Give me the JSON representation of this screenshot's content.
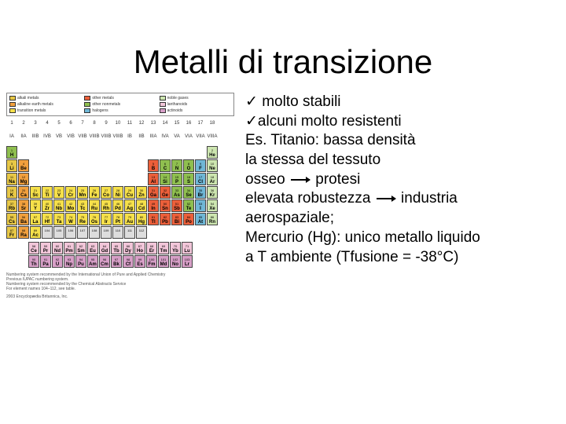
{
  "title": "Metalli di transizione",
  "bullets": {
    "b1": " molto stabili",
    "b2": "alcuni molto resistenti",
    "l3": "Es. Titanio: bassa densità",
    "l4": " la stessa del tessuto",
    "l5a": "osseo ",
    "l5b": " protesi",
    "l6a": "elevata robustezza  ",
    "l6b": " industria",
    "l7": "aerospaziale;",
    "l8": "Mercurio (Hg): unico metallo liquido",
    "l9": "a T ambiente  (Tfusione = -38°C)"
  },
  "legend": [
    {
      "color": "#e8c846",
      "label": "alkali metals"
    },
    {
      "color": "#ec5f3a",
      "label": "other metals"
    },
    {
      "color": "#cde6b0",
      "label": "noble gases"
    },
    {
      "color": "#f2a03d",
      "label": "alkaline earth metals"
    },
    {
      "color": "#8fbf4f",
      "label": "other nonmetals"
    },
    {
      "color": "#f2c6d9",
      "label": "lanthanoids"
    },
    {
      "color": "#f6e04a",
      "label": "transition metals"
    },
    {
      "color": "#6fb7d6",
      "label": "halogens"
    },
    {
      "color": "#d79fc7",
      "label": "actinoids"
    }
  ],
  "colors": {
    "alkali": "#e8c846",
    "alkearth": "#f2a03d",
    "transition": "#f6e04a",
    "othermetal": "#ec5f3a",
    "nonmetal": "#8fbf4f",
    "halogen": "#6fb7d6",
    "noble": "#cde6b0",
    "lanth": "#f2c6d9",
    "act": "#d79fc7",
    "unknown": "#dddddd"
  },
  "groups": [
    "1",
    "2",
    "3",
    "4",
    "5",
    "6",
    "7",
    "8",
    "9",
    "10",
    "11",
    "12",
    "13",
    "14",
    "15",
    "16",
    "17",
    "18"
  ],
  "romans": [
    "IA",
    "IIA",
    "IIIB",
    "IVB",
    "VB",
    "VIB",
    "VIIB",
    "VIIIB",
    "VIIIB",
    "VIIIB",
    "IB",
    "IIB",
    "IIIA",
    "IVA",
    "VA",
    "VIA",
    "VIIA",
    "VIIIA"
  ],
  "rows": [
    [
      {
        "n": "1",
        "s": "H",
        "c": "nonmetal"
      },
      null,
      null,
      null,
      null,
      null,
      null,
      null,
      null,
      null,
      null,
      null,
      null,
      null,
      null,
      null,
      null,
      {
        "n": "2",
        "s": "He",
        "c": "noble"
      }
    ],
    [
      {
        "n": "3",
        "s": "Li",
        "c": "alkali"
      },
      {
        "n": "4",
        "s": "Be",
        "c": "alkearth"
      },
      null,
      null,
      null,
      null,
      null,
      null,
      null,
      null,
      null,
      null,
      {
        "n": "5",
        "s": "B",
        "c": "othermetal"
      },
      {
        "n": "6",
        "s": "C",
        "c": "nonmetal"
      },
      {
        "n": "7",
        "s": "N",
        "c": "nonmetal"
      },
      {
        "n": "8",
        "s": "O",
        "c": "nonmetal"
      },
      {
        "n": "9",
        "s": "F",
        "c": "halogen"
      },
      {
        "n": "10",
        "s": "Ne",
        "c": "noble"
      }
    ],
    [
      {
        "n": "11",
        "s": "Na",
        "c": "alkali"
      },
      {
        "n": "12",
        "s": "Mg",
        "c": "alkearth"
      },
      null,
      null,
      null,
      null,
      null,
      null,
      null,
      null,
      null,
      null,
      {
        "n": "13",
        "s": "Al",
        "c": "othermetal"
      },
      {
        "n": "14",
        "s": "Si",
        "c": "nonmetal"
      },
      {
        "n": "15",
        "s": "P",
        "c": "nonmetal"
      },
      {
        "n": "16",
        "s": "S",
        "c": "nonmetal"
      },
      {
        "n": "17",
        "s": "Cl",
        "c": "halogen"
      },
      {
        "n": "18",
        "s": "Ar",
        "c": "noble"
      }
    ],
    [
      {
        "n": "19",
        "s": "K",
        "c": "alkali"
      },
      {
        "n": "20",
        "s": "Ca",
        "c": "alkearth"
      },
      {
        "n": "21",
        "s": "Sc",
        "c": "transition"
      },
      {
        "n": "22",
        "s": "Ti",
        "c": "transition"
      },
      {
        "n": "23",
        "s": "V",
        "c": "transition"
      },
      {
        "n": "24",
        "s": "Cr",
        "c": "transition"
      },
      {
        "n": "25",
        "s": "Mn",
        "c": "transition"
      },
      {
        "n": "26",
        "s": "Fe",
        "c": "transition"
      },
      {
        "n": "27",
        "s": "Co",
        "c": "transition"
      },
      {
        "n": "28",
        "s": "Ni",
        "c": "transition"
      },
      {
        "n": "29",
        "s": "Cu",
        "c": "transition"
      },
      {
        "n": "30",
        "s": "Zn",
        "c": "transition"
      },
      {
        "n": "31",
        "s": "Ga",
        "c": "othermetal"
      },
      {
        "n": "32",
        "s": "Ge",
        "c": "othermetal"
      },
      {
        "n": "33",
        "s": "As",
        "c": "nonmetal"
      },
      {
        "n": "34",
        "s": "Se",
        "c": "nonmetal"
      },
      {
        "n": "35",
        "s": "Br",
        "c": "halogen"
      },
      {
        "n": "36",
        "s": "Kr",
        "c": "noble"
      }
    ],
    [
      {
        "n": "37",
        "s": "Rb",
        "c": "alkali"
      },
      {
        "n": "38",
        "s": "Sr",
        "c": "alkearth"
      },
      {
        "n": "39",
        "s": "Y",
        "c": "transition"
      },
      {
        "n": "40",
        "s": "Zr",
        "c": "transition"
      },
      {
        "n": "41",
        "s": "Nb",
        "c": "transition"
      },
      {
        "n": "42",
        "s": "Mo",
        "c": "transition"
      },
      {
        "n": "43",
        "s": "Tc",
        "c": "transition"
      },
      {
        "n": "44",
        "s": "Ru",
        "c": "transition"
      },
      {
        "n": "45",
        "s": "Rh",
        "c": "transition"
      },
      {
        "n": "46",
        "s": "Pd",
        "c": "transition"
      },
      {
        "n": "47",
        "s": "Ag",
        "c": "transition"
      },
      {
        "n": "48",
        "s": "Cd",
        "c": "transition"
      },
      {
        "n": "49",
        "s": "In",
        "c": "othermetal"
      },
      {
        "n": "50",
        "s": "Sn",
        "c": "othermetal"
      },
      {
        "n": "51",
        "s": "Sb",
        "c": "othermetal"
      },
      {
        "n": "52",
        "s": "Te",
        "c": "nonmetal"
      },
      {
        "n": "53",
        "s": "I",
        "c": "halogen"
      },
      {
        "n": "54",
        "s": "Xe",
        "c": "noble"
      }
    ],
    [
      {
        "n": "55",
        "s": "Cs",
        "c": "alkali"
      },
      {
        "n": "56",
        "s": "Ba",
        "c": "alkearth"
      },
      {
        "n": "57",
        "s": "La",
        "c": "transition"
      },
      {
        "n": "72",
        "s": "Hf",
        "c": "transition"
      },
      {
        "n": "73",
        "s": "Ta",
        "c": "transition"
      },
      {
        "n": "74",
        "s": "W",
        "c": "transition"
      },
      {
        "n": "75",
        "s": "Re",
        "c": "transition"
      },
      {
        "n": "76",
        "s": "Os",
        "c": "transition"
      },
      {
        "n": "77",
        "s": "Ir",
        "c": "transition"
      },
      {
        "n": "78",
        "s": "Pt",
        "c": "transition"
      },
      {
        "n": "79",
        "s": "Au",
        "c": "transition"
      },
      {
        "n": "80",
        "s": "Hg",
        "c": "transition"
      },
      {
        "n": "81",
        "s": "Tl",
        "c": "othermetal"
      },
      {
        "n": "82",
        "s": "Pb",
        "c": "othermetal"
      },
      {
        "n": "83",
        "s": "Bi",
        "c": "othermetal"
      },
      {
        "n": "84",
        "s": "Po",
        "c": "othermetal"
      },
      {
        "n": "85",
        "s": "At",
        "c": "halogen"
      },
      {
        "n": "86",
        "s": "Rn",
        "c": "noble"
      }
    ],
    [
      {
        "n": "87",
        "s": "Fr",
        "c": "alkali"
      },
      {
        "n": "88",
        "s": "Ra",
        "c": "alkearth"
      },
      {
        "n": "89",
        "s": "Ac",
        "c": "transition"
      },
      {
        "n": "104",
        "s": "",
        "c": "unknown"
      },
      {
        "n": "105",
        "s": "",
        "c": "unknown"
      },
      {
        "n": "106",
        "s": "",
        "c": "unknown"
      },
      {
        "n": "107",
        "s": "",
        "c": "unknown"
      },
      {
        "n": "108",
        "s": "",
        "c": "unknown"
      },
      {
        "n": "109",
        "s": "",
        "c": "unknown"
      },
      {
        "n": "110",
        "s": "",
        "c": "unknown"
      },
      {
        "n": "111",
        "s": "",
        "c": "unknown"
      },
      {
        "n": "112",
        "s": "",
        "c": "unknown"
      },
      null,
      null,
      null,
      null,
      null,
      null
    ]
  ],
  "lanth": [
    {
      "n": "58",
      "s": "Ce",
      "c": "lanth"
    },
    {
      "n": "59",
      "s": "Pr",
      "c": "lanth"
    },
    {
      "n": "60",
      "s": "Nd",
      "c": "lanth"
    },
    {
      "n": "61",
      "s": "Pm",
      "c": "lanth"
    },
    {
      "n": "62",
      "s": "Sm",
      "c": "lanth"
    },
    {
      "n": "63",
      "s": "Eu",
      "c": "lanth"
    },
    {
      "n": "64",
      "s": "Gd",
      "c": "lanth"
    },
    {
      "n": "65",
      "s": "Tb",
      "c": "lanth"
    },
    {
      "n": "66",
      "s": "Dy",
      "c": "lanth"
    },
    {
      "n": "67",
      "s": "Ho",
      "c": "lanth"
    },
    {
      "n": "68",
      "s": "Er",
      "c": "lanth"
    },
    {
      "n": "69",
      "s": "Tm",
      "c": "lanth"
    },
    {
      "n": "70",
      "s": "Yb",
      "c": "lanth"
    },
    {
      "n": "71",
      "s": "Lu",
      "c": "lanth"
    }
  ],
  "act": [
    {
      "n": "90",
      "s": "Th",
      "c": "act"
    },
    {
      "n": "91",
      "s": "Pa",
      "c": "act"
    },
    {
      "n": "92",
      "s": "U",
      "c": "act"
    },
    {
      "n": "93",
      "s": "Np",
      "c": "act"
    },
    {
      "n": "94",
      "s": "Pu",
      "c": "act"
    },
    {
      "n": "95",
      "s": "Am",
      "c": "act"
    },
    {
      "n": "96",
      "s": "Cm",
      "c": "act"
    },
    {
      "n": "97",
      "s": "Bk",
      "c": "act"
    },
    {
      "n": "98",
      "s": "Cf",
      "c": "act"
    },
    {
      "n": "99",
      "s": "Es",
      "c": "act"
    },
    {
      "n": "100",
      "s": "Fm",
      "c": "act"
    },
    {
      "n": "101",
      "s": "Md",
      "c": "act"
    },
    {
      "n": "102",
      "s": "No",
      "c": "act"
    },
    {
      "n": "103",
      "s": "Lr",
      "c": "act"
    }
  ],
  "footnote": {
    "l1": "Numbering system recommended by the International Union of Pure and Applied Chemistry",
    "l2": "Previous IUPAC numbering system.",
    "l3": "Numbering system recommended by the Chemical Abstracts Service",
    "l4": "For element names 104–112, see table.",
    "l5": "2003 Encyclopædia Britannica, Inc."
  }
}
